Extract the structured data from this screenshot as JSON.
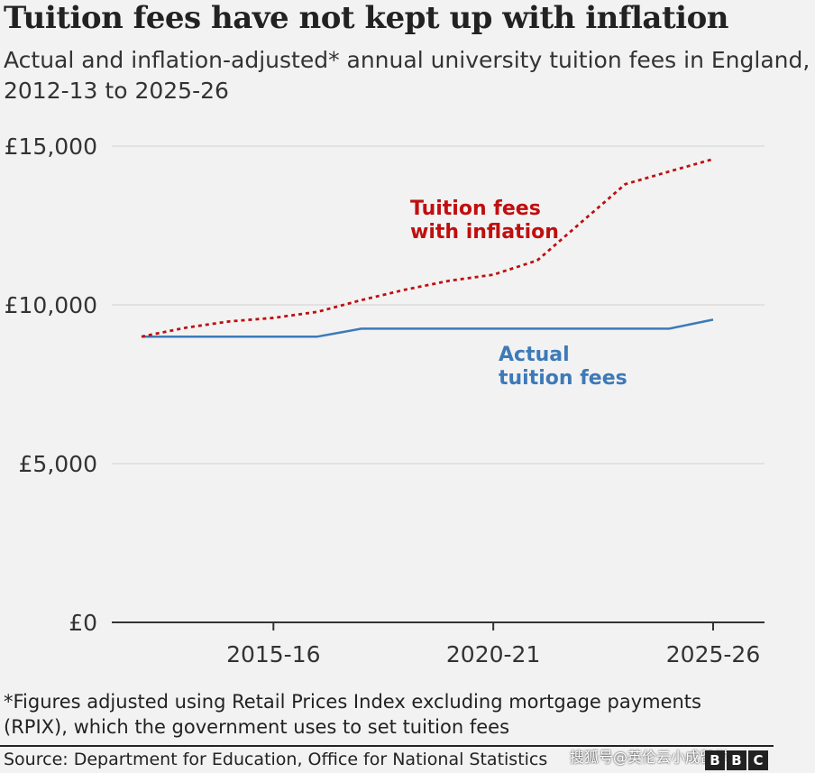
{
  "chart_data": {
    "type": "line",
    "title": "Tuition fees have not kept up with inflation",
    "subtitle": "Actual and inflation-adjusted* annual university tuition fees in England, 2012-13 to 2025-26",
    "x": [
      "2012-13",
      "2013-14",
      "2014-15",
      "2015-16",
      "2016-17",
      "2017-18",
      "2018-19",
      "2019-20",
      "2020-21",
      "2021-22",
      "2022-23",
      "2023-24",
      "2024-25",
      "2025-26"
    ],
    "series": [
      {
        "name": "Actual tuition fees",
        "label_lines": [
          "Actual",
          "tuition fees"
        ],
        "color": "#3d7ab8",
        "style": "solid",
        "values": [
          9000,
          9000,
          9000,
          9000,
          9000,
          9250,
          9250,
          9250,
          9250,
          9250,
          9250,
          9250,
          9250,
          9535
        ]
      },
      {
        "name": "Tuition fees with inflation",
        "label_lines": [
          "Tuition fees",
          "with inflation"
        ],
        "color": "#bf0f0f",
        "style": "dotted",
        "values": [
          9000,
          9280,
          9480,
          9590,
          9780,
          10150,
          10480,
          10760,
          10950,
          11400,
          12600,
          13800,
          14200,
          14590
        ]
      }
    ],
    "xticks": [
      "2015-16",
      "2020-21",
      "2025-26"
    ],
    "yticks": [
      "£0",
      "£5,000",
      "£10,000",
      "£15,000"
    ],
    "ytick_values": [
      0,
      5000,
      10000,
      15000
    ],
    "ylim": [
      0,
      15000
    ],
    "grid": "horizontal",
    "xlabel": "",
    "ylabel": ""
  },
  "footnote": "*Figures adjusted using Retail Prices Index excluding mortgage payments (RPIX), which the government uses to set tuition fees",
  "source": "Source: Department for Education, Office for National Statistics",
  "watermark": "搜狐号@英伦云小成留学",
  "logo": [
    "B",
    "B",
    "C"
  ]
}
